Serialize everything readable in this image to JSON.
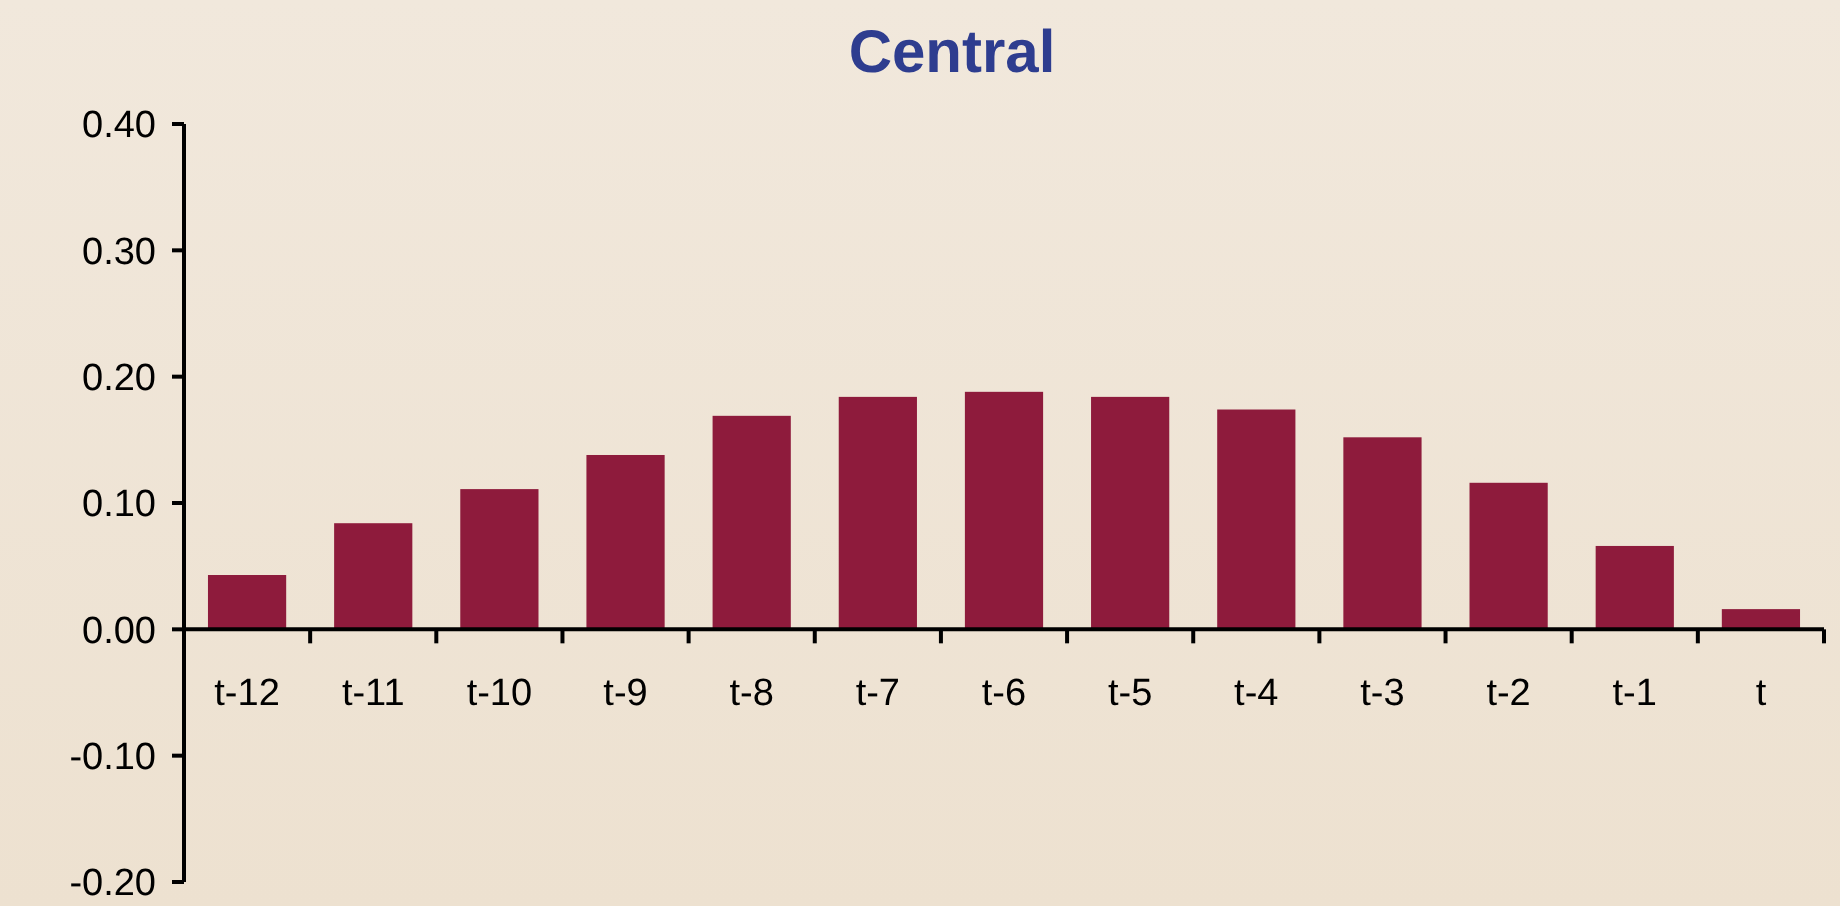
{
  "chart_data": {
    "type": "bar",
    "title": "Central",
    "categories": [
      "t-12",
      "t-11",
      "t-10",
      "t-9",
      "t-8",
      "t-7",
      "t-6",
      "t-5",
      "t-4",
      "t-3",
      "t-2",
      "t-1",
      "t"
    ],
    "values": [
      0.043,
      0.084,
      0.111,
      0.138,
      0.169,
      0.184,
      0.188,
      0.184,
      0.174,
      0.152,
      0.116,
      0.066,
      0.016
    ],
    "color": "#8e1b3c",
    "ylim": [
      -0.2,
      0.4
    ],
    "yticks": [
      {
        "value": -0.2,
        "label": "-0.20"
      },
      {
        "value": -0.1,
        "label": "-0.10"
      },
      {
        "value": 0,
        "label": "0.00"
      },
      {
        "value": 0.1,
        "label": "0.10"
      },
      {
        "value": 0.2,
        "label": "0.20"
      },
      {
        "value": 0.3,
        "label": "0.30"
      },
      {
        "value": 0.4,
        "label": "0.40"
      }
    ],
    "grid": false
  }
}
